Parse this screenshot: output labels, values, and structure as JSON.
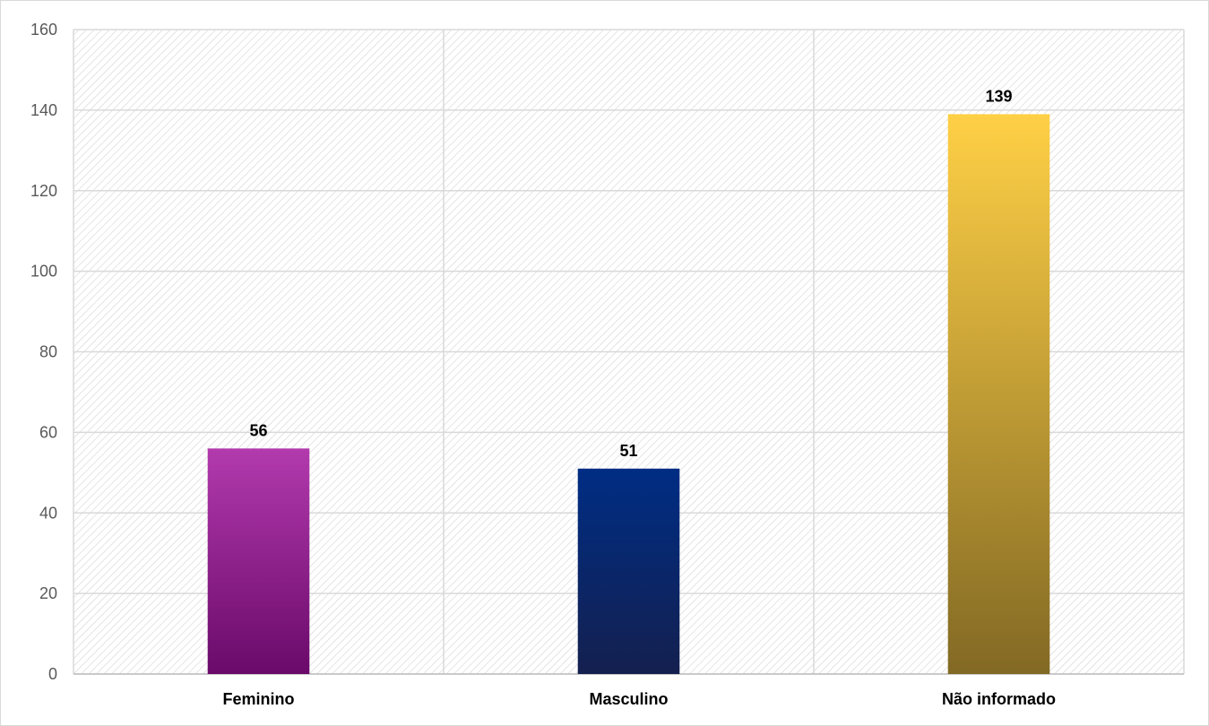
{
  "chart_data": {
    "type": "bar",
    "title": "",
    "xlabel": "",
    "ylabel": "",
    "categories": [
      "Feminino",
      "Masculino",
      "Não informado"
    ],
    "values": [
      56,
      51,
      139
    ],
    "data_labels": [
      "56",
      "51",
      "139"
    ],
    "ylim": [
      0,
      160
    ],
    "yticks": [
      0,
      20,
      40,
      60,
      80,
      100,
      120,
      140,
      160
    ],
    "ytick_labels": [
      "0",
      "20",
      "40",
      "60",
      "80",
      "100",
      "120",
      "140",
      "160"
    ],
    "grid": true,
    "legend": "none",
    "plot_background": "diagonal hatch",
    "bar_colors": [
      {
        "top": "#b23aad",
        "bottom": "#6a0a6a"
      },
      {
        "top": "#002d84",
        "bottom": "#14204f"
      },
      {
        "top": "#ffd046",
        "bottom": "#826924"
      }
    ]
  }
}
